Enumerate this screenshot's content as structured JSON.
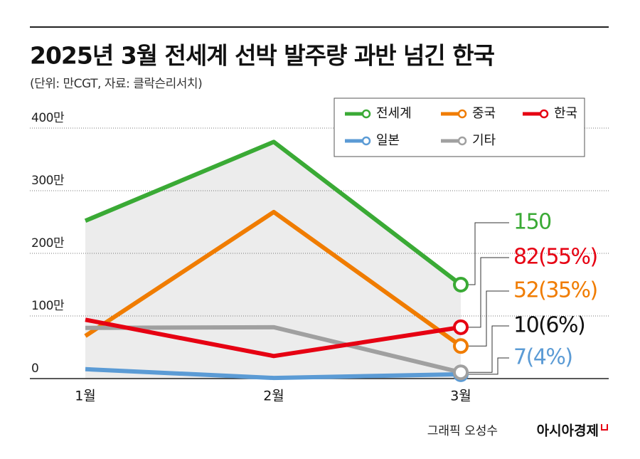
{
  "chart_data": {
    "type": "line",
    "title": "2025년 3월 전세계 선박 발주량 과반 넘긴 한국",
    "subtitle": "(단위: 만CGT, 자료: 클락슨리서치)",
    "categories": [
      "1월",
      "2월",
      "3월"
    ],
    "series": [
      {
        "name": "전세계",
        "color": "#3aaa35",
        "values": [
          252,
          378,
          150
        ],
        "value_labels": [
          null,
          null,
          "150"
        ]
      },
      {
        "name": "중국",
        "color": "#f07c00",
        "values": [
          68,
          266,
          52
        ],
        "value_labels": [
          null,
          null,
          "52(35%)"
        ]
      },
      {
        "name": "한국",
        "color": "#e60012",
        "values": [
          94,
          36,
          82
        ],
        "value_labels": [
          null,
          null,
          "82(55%)"
        ]
      },
      {
        "name": "일본",
        "color": "#5b9bd5",
        "values": [
          15,
          1,
          7
        ],
        "value_labels": [
          null,
          null,
          "7(4%)"
        ]
      },
      {
        "name": "기타",
        "color": "#a0a0a0",
        "values": [
          81,
          82,
          10
        ],
        "value_labels": [
          null,
          null,
          "10(6%)"
        ]
      }
    ],
    "ylim": [
      0,
      400
    ],
    "yticks": [
      0,
      {
        "value": 100,
        "label": "100만"
      },
      {
        "value": 200,
        "label": "200만"
      },
      {
        "value": 300,
        "label": "300만"
      },
      {
        "value": 400,
        "label": "400만"
      }
    ],
    "grid": true,
    "area_color": "#ececec",
    "label_colors": [
      "#3aaa35",
      "#f07c00",
      "#e60012",
      "#5b9bd5",
      "#111111"
    ],
    "credit": "그래픽 오성수",
    "brand": "아시아경제"
  }
}
